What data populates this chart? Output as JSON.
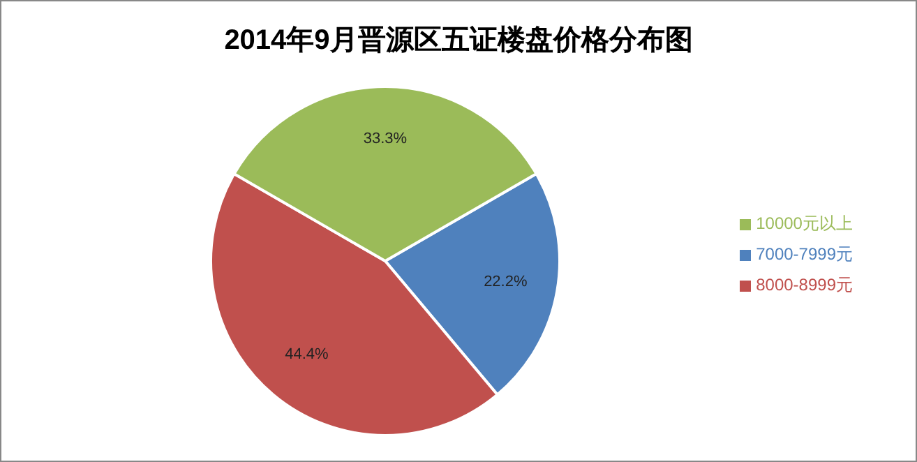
{
  "chart_data": {
    "type": "pie",
    "title": "2014年9月晋源区五证楼盘价格分布图",
    "categories": [
      "7000-7999元",
      "8000-8999元",
      "10000元以上"
    ],
    "values": [
      22.2,
      44.4,
      33.3
    ],
    "value_labels": [
      "22.2%",
      "44.4%",
      "33.3%"
    ],
    "colors": [
      "#4f81bd",
      "#c0504d",
      "#9bbb59"
    ],
    "legend": "right"
  }
}
